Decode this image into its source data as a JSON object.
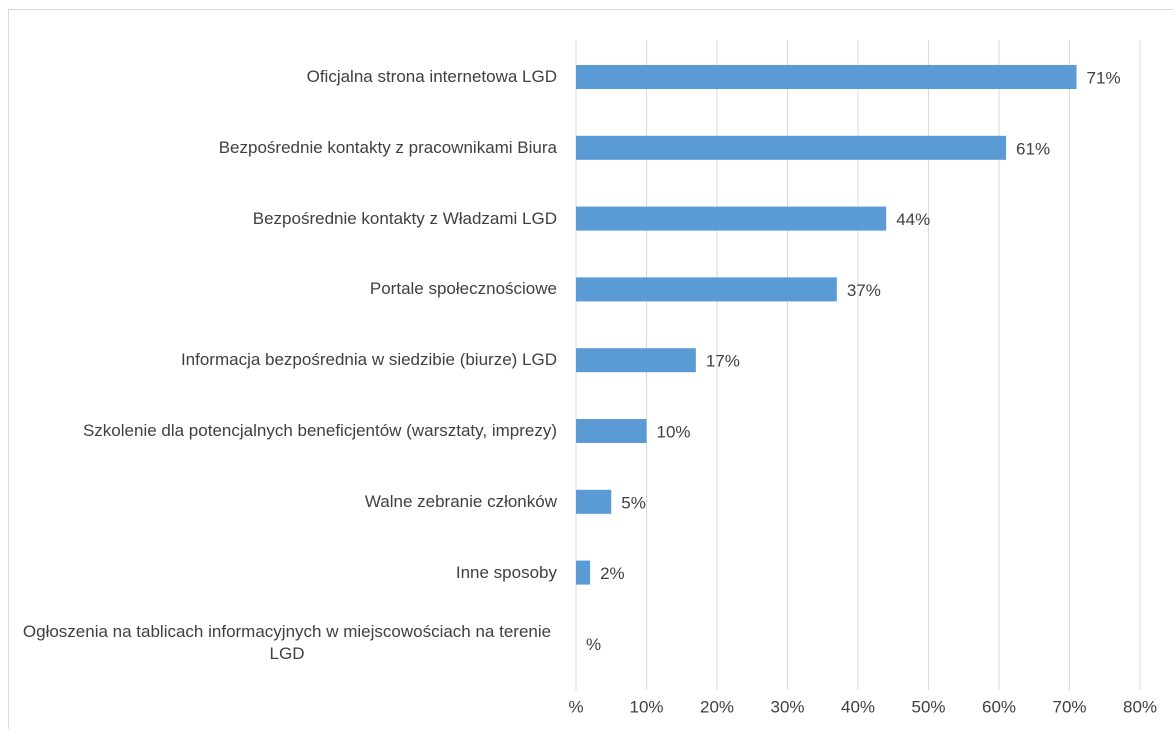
{
  "chart_data": {
    "type": "hbar",
    "categories": [
      "Oficjalna strona internetowa LGD",
      "Bezpośrednie kontakty z pracownikami Biura",
      "Bezpośrednie kontakty z Władzami LGD",
      "Portale społecznościowe",
      "Informacja bezpośrednia w siedzibie (biurze) LGD",
      "Szkolenie dla potencjalnych beneficjentów (warsztaty, imprezy)",
      "Walne zebranie członków",
      "Inne sposoby",
      "Ogłoszenia na tablicach informacyjnych w miejscowościach na terenie LGD"
    ],
    "values": [
      71,
      61,
      44,
      37,
      17,
      10,
      5,
      2,
      0
    ],
    "value_labels": [
      "71%",
      "61%",
      "44%",
      "37%",
      "17%",
      "10%",
      "5%",
      "2%",
      "%"
    ],
    "color": "#5b9bd5",
    "xlim": [
      0,
      80
    ],
    "xticks": [
      {
        "value": 0,
        "label": "%"
      },
      {
        "value": 10,
        "label": "10%"
      },
      {
        "value": 20,
        "label": "20%"
      },
      {
        "value": 30,
        "label": "30%"
      },
      {
        "value": 40,
        "label": "40%"
      },
      {
        "value": 50,
        "label": "50%"
      },
      {
        "value": 60,
        "label": "60%"
      },
      {
        "value": 70,
        "label": "70%"
      },
      {
        "value": 80,
        "label": "80%"
      }
    ],
    "grid": true
  }
}
